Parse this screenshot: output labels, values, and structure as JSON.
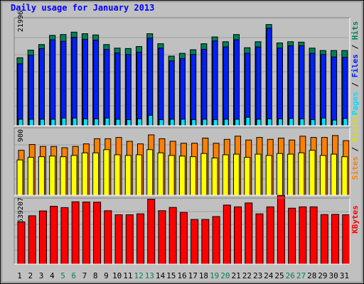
{
  "chart_data": {
    "type": "bar",
    "title": "Daily usage for January 2013",
    "categories": [
      "1",
      "2",
      "3",
      "4",
      "5",
      "6",
      "7",
      "8",
      "9",
      "10",
      "11",
      "12",
      "13",
      "14",
      "15",
      "16",
      "17",
      "18",
      "19",
      "20",
      "21",
      "22",
      "23",
      "24",
      "25",
      "26",
      "27",
      "28",
      "29",
      "30",
      "31"
    ],
    "weekend_categories": [
      "5",
      "6",
      "12",
      "13",
      "19",
      "20",
      "26",
      "27"
    ],
    "panels": [
      {
        "tick_label": "21996",
        "series_order": [
          "Pages",
          "Files",
          "Hits"
        ],
        "ylim": [
          0,
          27000
        ],
        "series": [
          {
            "name": "Hits",
            "color": "#00805c",
            "values": [
              17000,
              18900,
              20300,
              22600,
              22800,
              23400,
              23000,
              22700,
              20300,
              19400,
              19300,
              19800,
              23000,
              20500,
              17400,
              18100,
              19000,
              20500,
              22200,
              21000,
              22800,
              19500,
              21000,
              25300,
              20700,
              21000,
              20900,
              19400,
              18800,
              18800,
              18800
            ]
          },
          {
            "name": "Files",
            "color": "#0020ff",
            "values": [
              15500,
              17600,
              19300,
              21500,
              21100,
              22100,
              21600,
              21400,
              19100,
              18200,
              17800,
              18400,
              21900,
              19400,
              16200,
              16800,
              17800,
              19100,
              21200,
              19700,
              21500,
              18100,
              19700,
              24400,
              19400,
              20000,
              20000,
              18100,
              17800,
              17200,
              17100
            ]
          },
          {
            "name": "Pages",
            "color": "#00e0ff",
            "values": [
              1600,
              1600,
              1600,
              1600,
              1900,
              1900,
              1700,
              1700,
              1900,
              1600,
              1500,
              1700,
              2600,
              1500,
              1600,
              1600,
              1500,
              1600,
              1500,
              1600,
              1600,
              2100,
              1600,
              1700,
              1700,
              1800,
              1700,
              1500,
              1900,
              1400,
              1800
            ]
          }
        ]
      },
      {
        "tick_label": "900",
        "series_order": [
          "Sites",
          "Visits"
        ],
        "ylim": [
          0,
          1050
        ],
        "series": [
          {
            "name": "Visits",
            "color": "#ff8000",
            "values": [
              700,
              790,
              760,
              760,
              740,
              760,
              800,
              880,
              880,
              900,
              840,
              800,
              940,
              880,
              840,
              810,
              810,
              890,
              810,
              870,
              920,
              860,
              900,
              870,
              890,
              860,
              920,
              900,
              900,
              930,
              850
            ]
          },
          {
            "name": "Sites",
            "color": "#ffff00",
            "values": [
              550,
              590,
              600,
              610,
              600,
              620,
              660,
              660,
              710,
              630,
              620,
              630,
              710,
              660,
              620,
              610,
              600,
              650,
              580,
              630,
              640,
              590,
              640,
              620,
              650,
              640,
              660,
              700,
              620,
              640,
              600
            ]
          }
        ]
      },
      {
        "tick_label": "539207",
        "series_order": [
          "KBytes"
        ],
        "ylim": [
          0,
          680000
        ],
        "series": [
          {
            "name": "KBytes",
            "color": "#ff0000",
            "values": [
              435000,
              498000,
              548000,
              596000,
              582000,
              642000,
              640000,
              638000,
              550000,
              508000,
              508000,
              518000,
              668000,
              550000,
              584000,
              532000,
              460000,
              460000,
              490000,
              608000,
              590000,
              630000,
              518000,
              590000,
              708000,
              576000,
              590000,
              590000,
              510000,
              512000,
              508000
            ]
          }
        ]
      }
    ]
  }
}
